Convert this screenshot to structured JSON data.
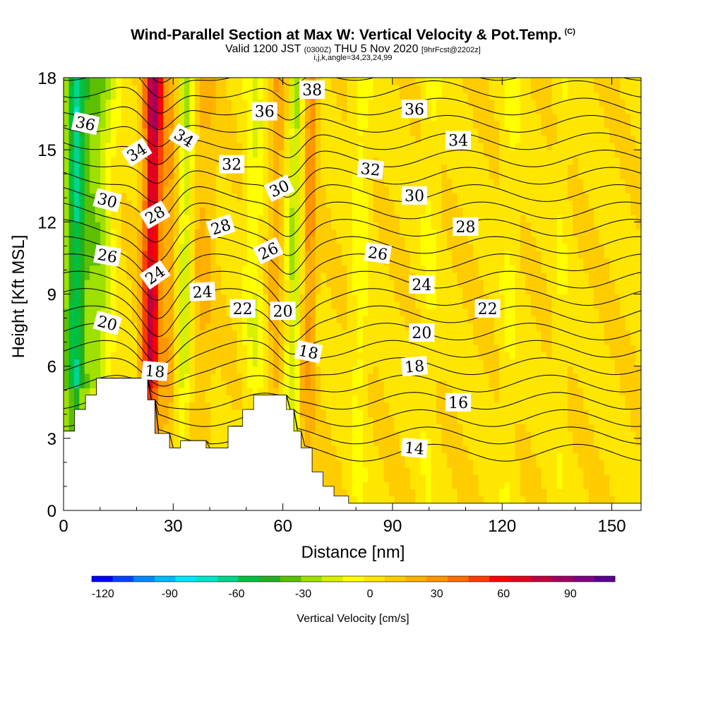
{
  "header": {
    "title": "Wind-Parallel Section at Max W: Vertical Velocity & Pot.Temp.",
    "copyright": "(C)",
    "valid_prefix": "Valid 1200 JST",
    "valid_utc": "(0300Z)",
    "valid_date": "THU 5 Nov 2020",
    "forecast": "[9hrFcst@2202z]",
    "params": "i,j,k,angle=34,23,24,99"
  },
  "chart_data": {
    "type": "heatmap",
    "xlabel": "Distance [nm]",
    "ylabel": "Height [Kft MSL]",
    "xlim": [
      0,
      158
    ],
    "ylim": [
      0,
      18
    ],
    "x_ticks": [
      0,
      30,
      60,
      90,
      120,
      150
    ],
    "y_ticks": [
      0,
      3,
      6,
      9,
      12,
      15,
      18
    ],
    "colorbar": {
      "label": "Vertical Velocity [cm/s]",
      "tick_values": [
        -120,
        -90,
        -60,
        -30,
        0,
        30,
        60,
        90
      ],
      "tick_labels": [
        "-120",
        "-90",
        "-60",
        "-30",
        "0",
        "30",
        "60",
        "90"
      ],
      "colors": [
        "#0000ff",
        "#0044ff",
        "#0088ff",
        "#00bbff",
        "#00e6ff",
        "#00e6c8",
        "#00d68c",
        "#00c040",
        "#22b022",
        "#5cbf00",
        "#9ee000",
        "#d8f000",
        "#ffff00",
        "#ffe600",
        "#ffcc00",
        "#ffb000",
        "#ff9600",
        "#ff6e00",
        "#ff3c00",
        "#ff0000",
        "#e00020",
        "#c00040",
        "#a00060",
        "#800080",
        "#5a0090"
      ]
    },
    "vertical_velocity_bands": [
      {
        "x_center": 3,
        "width": 6,
        "value": -75,
        "note": "strong downdraft top-left"
      },
      {
        "x_center": 9,
        "width": 8,
        "value": -40
      },
      {
        "x_center": 24,
        "width": 5,
        "value": 85
      },
      {
        "x_center": 29,
        "width": 4,
        "value": 20
      },
      {
        "x_center": 33,
        "width": 4,
        "value": -30
      },
      {
        "x_center": 38,
        "width": 6,
        "value": 15
      },
      {
        "x_center": 52,
        "width": 5,
        "value": -20
      },
      {
        "x_center": 58,
        "width": 4,
        "value": 20
      },
      {
        "x_center": 63,
        "width": 4,
        "value": -35
      },
      {
        "x_center": 67,
        "width": 4,
        "value": 30
      },
      {
        "x_center": 81,
        "width": 5,
        "value": -15
      },
      {
        "x_center": 100,
        "width": 5,
        "value": -10
      },
      {
        "x_center": 122,
        "width": 5,
        "value": -10
      },
      {
        "x_center": 136,
        "width": 4,
        "value": -8
      }
    ],
    "potential_temperature_contours": {
      "interval": 1,
      "labels": [
        {
          "text": "36",
          "x": 6,
          "y": 16.1,
          "angle": 12
        },
        {
          "text": "34",
          "x": 20,
          "y": 14.9,
          "angle": -33
        },
        {
          "text": "34",
          "x": 33,
          "y": 15.5,
          "angle": 32
        },
        {
          "text": "36",
          "x": 55,
          "y": 16.6,
          "angle": 0
        },
        {
          "text": "38",
          "x": 68,
          "y": 17.5,
          "angle": 0
        },
        {
          "text": "36",
          "x": 96,
          "y": 16.7,
          "angle": 0
        },
        {
          "text": "34",
          "x": 108,
          "y": 15.4,
          "angle": 0
        },
        {
          "text": "32",
          "x": 46,
          "y": 14.4,
          "angle": 0
        },
        {
          "text": "32",
          "x": 84,
          "y": 14.2,
          "angle": 6
        },
        {
          "text": "30",
          "x": 12,
          "y": 12.9,
          "angle": 15
        },
        {
          "text": "30",
          "x": 59,
          "y": 13.4,
          "angle": -25
        },
        {
          "text": "30",
          "x": 96,
          "y": 13.1,
          "angle": 0
        },
        {
          "text": "28",
          "x": 25,
          "y": 12.3,
          "angle": -30
        },
        {
          "text": "28",
          "x": 43,
          "y": 11.8,
          "angle": -18
        },
        {
          "text": "28",
          "x": 110,
          "y": 11.8,
          "angle": 0
        },
        {
          "text": "26",
          "x": 12,
          "y": 10.6,
          "angle": 10
        },
        {
          "text": "26",
          "x": 56,
          "y": 10.8,
          "angle": -25
        },
        {
          "text": "26",
          "x": 86,
          "y": 10.7,
          "angle": 8
        },
        {
          "text": "24",
          "x": 25,
          "y": 9.8,
          "angle": -35
        },
        {
          "text": "24",
          "x": 38,
          "y": 9.1,
          "angle": -3
        },
        {
          "text": "24",
          "x": 98,
          "y": 9.4,
          "angle": 0
        },
        {
          "text": "22",
          "x": 49,
          "y": 8.4,
          "angle": 0
        },
        {
          "text": "22",
          "x": 116,
          "y": 8.4,
          "angle": 0
        },
        {
          "text": "20",
          "x": 12,
          "y": 7.8,
          "angle": 15
        },
        {
          "text": "20",
          "x": 60,
          "y": 8.3,
          "angle": 0
        },
        {
          "text": "20",
          "x": 98,
          "y": 7.4,
          "angle": 0
        },
        {
          "text": "18",
          "x": 25,
          "y": 5.8,
          "angle": 5
        },
        {
          "text": "18",
          "x": 67,
          "y": 6.6,
          "angle": 12
        },
        {
          "text": "18",
          "x": 96,
          "y": 6.0,
          "angle": -5
        },
        {
          "text": "16",
          "x": 108,
          "y": 4.5,
          "angle": 0
        },
        {
          "text": "14",
          "x": 96,
          "y": 2.6,
          "angle": 5
        }
      ]
    },
    "terrain": [
      [
        0,
        3.3
      ],
      [
        3,
        3.3
      ],
      [
        3,
        4.2
      ],
      [
        6,
        4.2
      ],
      [
        6,
        4.8
      ],
      [
        9,
        4.8
      ],
      [
        9,
        5.5
      ],
      [
        23,
        5.5
      ],
      [
        23,
        4.6
      ],
      [
        25,
        4.6
      ],
      [
        25,
        3.2
      ],
      [
        29,
        3.2
      ],
      [
        29,
        2.6
      ],
      [
        32,
        2.6
      ],
      [
        32,
        2.9
      ],
      [
        39,
        2.9
      ],
      [
        39,
        2.6
      ],
      [
        45,
        2.6
      ],
      [
        45,
        3.5
      ],
      [
        49,
        3.5
      ],
      [
        49,
        4.2
      ],
      [
        52,
        4.2
      ],
      [
        52,
        4.8
      ],
      [
        61,
        4.8
      ],
      [
        61,
        4.2
      ],
      [
        63,
        4.2
      ],
      [
        63,
        3.3
      ],
      [
        65,
        3.3
      ],
      [
        65,
        2.6
      ],
      [
        68,
        2.6
      ],
      [
        68,
        1.6
      ],
      [
        71,
        1.6
      ],
      [
        71,
        1.0
      ],
      [
        74,
        1.0
      ],
      [
        74,
        0.6
      ],
      [
        78,
        0.6
      ],
      [
        78,
        0.3
      ],
      [
        82,
        0.3
      ],
      [
        82,
        0.3
      ],
      [
        158,
        0.3
      ]
    ]
  }
}
